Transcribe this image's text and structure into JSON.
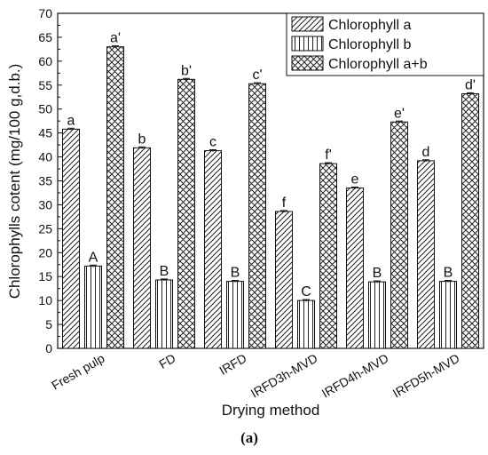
{
  "chart_data": {
    "type": "bar",
    "title": "",
    "xlabel": "Drying method",
    "ylabel": "Chlorophylls cotent (mg/100 g,d.b.)",
    "ylim": [
      0,
      70
    ],
    "yticks": [
      0,
      5,
      10,
      15,
      20,
      25,
      30,
      35,
      40,
      45,
      50,
      55,
      60,
      65,
      70
    ],
    "categories": [
      "Fresh pulp",
      "FD",
      "IRFD",
      "IRFD3h-MVD",
      "IRFD4h-MVD",
      "IRFD5h-MVD"
    ],
    "series": [
      {
        "name": "Chlorophyll a",
        "pattern": "diagonal",
        "values": [
          45.8,
          41.9,
          41.3,
          28.6,
          33.5,
          39.2
        ],
        "errors": [
          0.2,
          0.2,
          0.2,
          0.2,
          0.2,
          0.2
        ],
        "labels": [
          "a",
          "b",
          "c",
          "f",
          "e",
          "d"
        ]
      },
      {
        "name": "Chlorophyll b",
        "pattern": "vertical",
        "values": [
          17.2,
          14.3,
          14.0,
          10.0,
          13.9,
          14.0
        ],
        "errors": [
          0.2,
          0.2,
          0.2,
          0.2,
          0.2,
          0.2
        ],
        "labels": [
          "A",
          "B",
          "B",
          "C",
          "B",
          "B"
        ]
      },
      {
        "name": "Chlorophyll a+b",
        "pattern": "crosshatch",
        "values": [
          63.0,
          56.2,
          55.3,
          38.6,
          47.3,
          53.2
        ],
        "errors": [
          0.2,
          0.2,
          0.2,
          0.2,
          0.2,
          0.2
        ],
        "labels": [
          "a'",
          "b'",
          "c'",
          "f'",
          "e'",
          "d'"
        ]
      }
    ],
    "legend": "top-right",
    "grid": false
  },
  "panel_label": "(a)"
}
